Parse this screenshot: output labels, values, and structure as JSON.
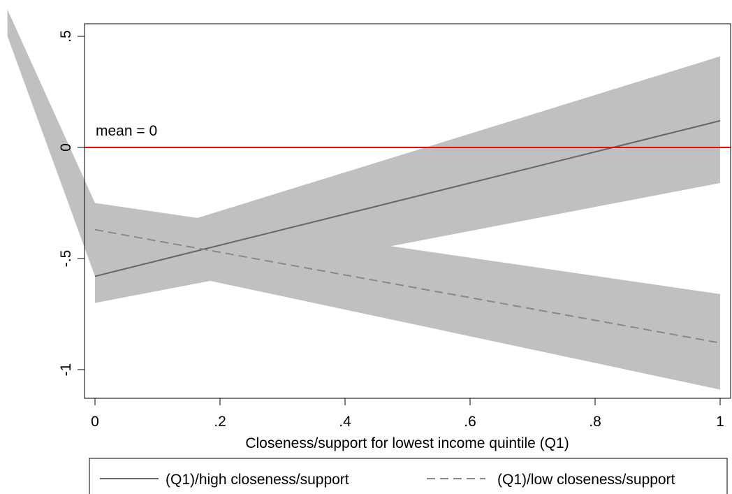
{
  "chart_data": {
    "type": "line",
    "title": "",
    "xlabel": "Closeness/support for lowest income quintile (Q1)",
    "ylabel": "",
    "xlim": [
      0,
      1
    ],
    "ylim": [
      -1.1,
      0.55
    ],
    "x_ticks": [
      0,
      0.2,
      0.4,
      0.6,
      0.8,
      1
    ],
    "x_tick_labels": [
      "0",
      ".2",
      ".4",
      ".6",
      ".8",
      "1"
    ],
    "y_ticks": [
      -1,
      -0.5,
      0,
      0.5
    ],
    "y_tick_labels": [
      "-1",
      "-.5",
      "0",
      ".5"
    ],
    "grid": false,
    "legend_position": "bottom",
    "series": [
      {
        "name": "(Q1)/high closeness/support",
        "style": "solid",
        "color": "#666666",
        "x": [
          0,
          1
        ],
        "y": [
          -0.58,
          0.12
        ],
        "ci_lower": [
          -0.7,
          -0.16
        ],
        "ci_upper": [
          -0.46,
          0.41
        ]
      },
      {
        "name": "(Q1)/low closeness/support",
        "style": "dashed",
        "color": "#888888",
        "x": [
          0,
          1
        ],
        "y": [
          -0.37,
          -0.88
        ],
        "ci_lower": [
          -0.49,
          -1.09
        ],
        "ci_upper": [
          -0.25,
          -0.66
        ]
      }
    ],
    "band_color": "#c0c0c0",
    "extra_band": {
      "x": [
        -0.14,
        0
      ],
      "upper": [
        0.62,
        -0.25
      ],
      "lower": [
        0.5,
        -0.58
      ]
    },
    "reference_line": {
      "y": 0,
      "color": "#ff0000",
      "label": "mean = 0"
    }
  }
}
